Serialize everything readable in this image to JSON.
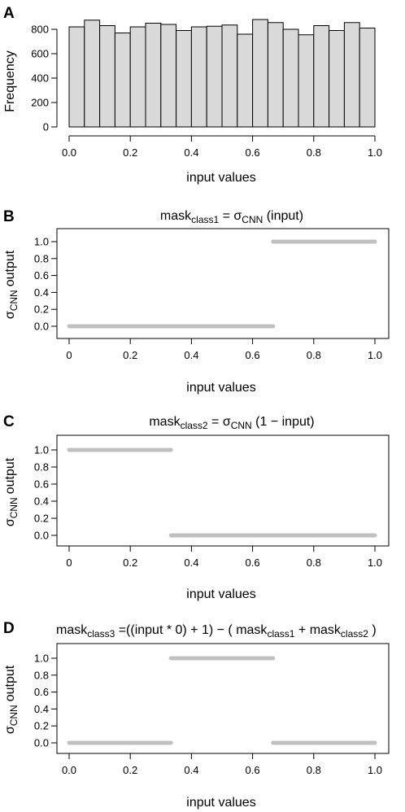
{
  "chart_data": [
    {
      "panel": "A",
      "type": "bar",
      "title": "",
      "xlabel": "input values",
      "ylabel": "Frequency",
      "xlim": [
        0,
        1
      ],
      "ylim": [
        0,
        900
      ],
      "xticks": [
        "0.0",
        "0.2",
        "0.4",
        "0.6",
        "0.8",
        "1.0"
      ],
      "yticks": [
        "0",
        "200",
        "400",
        "600",
        "800"
      ],
      "bin_width": 0.05,
      "bins": [
        0,
        0.05,
        0.1,
        0.15,
        0.2,
        0.25,
        0.3,
        0.35,
        0.4,
        0.45,
        0.5,
        0.55,
        0.6,
        0.65,
        0.7,
        0.75,
        0.8,
        0.85,
        0.9,
        0.95
      ],
      "values": [
        820,
        875,
        830,
        770,
        820,
        850,
        840,
        790,
        820,
        825,
        835,
        760,
        880,
        855,
        800,
        755,
        830,
        790,
        855,
        810
      ],
      "bar_fill": "#d9d9d9",
      "grid": false
    },
    {
      "panel": "B",
      "type": "line",
      "title": {
        "pre": "mask",
        "sub": "class1",
        "mid": " = σ",
        "sub2": "CNN",
        "post": " (input)"
      },
      "xlabel": "input values",
      "ylabel": {
        "pre": "σ",
        "sub": "CNN",
        "post": "output"
      },
      "xlim": [
        0,
        1
      ],
      "ylim": [
        0,
        1
      ],
      "xticks": [
        "0",
        "0.2",
        "0.4",
        "0.6",
        "0.8",
        "1.0"
      ],
      "yticks": [
        "0.0",
        "0.2",
        "0.4",
        "0.6",
        "0.8",
        "1.0"
      ],
      "segments": [
        {
          "x": [
            0,
            0.667
          ],
          "y": [
            0,
            0
          ]
        },
        {
          "x": [
            0.667,
            1.0
          ],
          "y": [
            1,
            1
          ]
        }
      ],
      "line_color": "#c0c0c0"
    },
    {
      "panel": "C",
      "type": "line",
      "title": {
        "pre": "mask",
        "sub": "class2",
        "mid": " = σ",
        "sub2": "CNN",
        "post": " (1 − input)"
      },
      "xlabel": "input values",
      "ylabel": {
        "pre": "σ",
        "sub": "CNN",
        "post": "output"
      },
      "xlim": [
        0,
        1
      ],
      "ylim": [
        0,
        1
      ],
      "xticks": [
        "0",
        "0.2",
        "0.4",
        "0.6",
        "0.8",
        "1.0"
      ],
      "yticks": [
        "0.0",
        "0.2",
        "0.4",
        "0.6",
        "0.8",
        "1.0"
      ],
      "segments": [
        {
          "x": [
            0,
            0.333
          ],
          "y": [
            1,
            1
          ]
        },
        {
          "x": [
            0.333,
            1.0
          ],
          "y": [
            0,
            0
          ]
        }
      ],
      "line_color": "#c0c0c0"
    },
    {
      "panel": "D",
      "type": "line",
      "title": {
        "pre": "mask",
        "sub": "class3",
        "post": " =((input * 0) + 1) − ( mask",
        "sub2": "class1",
        "post2": " + mask",
        "sub3": "class2",
        "post3": " )"
      },
      "xlabel": "input values",
      "ylabel": {
        "pre": "σ",
        "sub": "CNN",
        "post": "output"
      },
      "xlim": [
        0,
        1
      ],
      "ylim": [
        0,
        1
      ],
      "xticks": [
        "0.0",
        "0.2",
        "0.4",
        "0.6",
        "0.8",
        "1.0"
      ],
      "yticks": [
        "0.0",
        "0.2",
        "0.4",
        "0.6",
        "0.8",
        "1.0"
      ],
      "segments": [
        {
          "x": [
            0,
            0.333
          ],
          "y": [
            0,
            0
          ]
        },
        {
          "x": [
            0.333,
            0.667
          ],
          "y": [
            1,
            1
          ]
        },
        {
          "x": [
            0.667,
            1.0
          ],
          "y": [
            0,
            0
          ]
        }
      ],
      "line_color": "#c0c0c0"
    }
  ]
}
